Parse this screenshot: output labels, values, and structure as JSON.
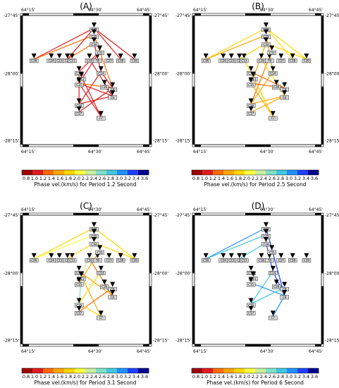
{
  "figure": {
    "colorbar": {
      "ticks": [
        "0.8",
        "1.0",
        "1.2",
        "1.4",
        "1.6",
        "1.8",
        "2.0",
        "2.2",
        "2.4",
        "2.6",
        "2.8",
        "3.0",
        "3.2",
        "3.4",
        "3.6"
      ],
      "colors": [
        "#9e0000",
        "#e31a1c",
        "#ff6a00",
        "#ffa500",
        "#ffd700",
        "#ffff40",
        "#c8f0a0",
        "#7fe0c8",
        "#40c8e0",
        "#1e90ff",
        "#1e40ff",
        "#000090"
      ]
    }
  },
  "chart_data": [
    {
      "type": "map",
      "title": "(A)",
      "colorbar_label": "Phase vel.(km/s) for Period 1.2 Second",
      "lon_ticks": [
        "64°15'",
        "64°30'",
        "64°45'"
      ],
      "lat_ticks": [
        "-27°45'",
        "-28°00'",
        "-28°15'"
      ],
      "stations": [
        {
          "id": "C36"
        },
        {
          "id": "C24"
        },
        {
          "id": "C23"
        },
        {
          "id": "C20"
        },
        {
          "id": "C13"
        },
        {
          "id": "C18"
        },
        {
          "id": "T8"
        },
        {
          "id": "C27"
        },
        {
          "id": "C38"
        },
        {
          "id": "C39"
        },
        {
          "id": "C30"
        },
        {
          "id": "C25"
        },
        {
          "id": "C34"
        },
        {
          "id": "C31"
        },
        {
          "id": "C12"
        },
        {
          "id": "C14"
        },
        {
          "id": "C11"
        },
        {
          "id": "C15"
        },
        {
          "id": "C26"
        },
        {
          "id": "C8"
        },
        {
          "id": "C6"
        },
        {
          "id": "C16"
        },
        {
          "id": "C17"
        },
        {
          "id": "C7"
        }
      ],
      "paths": [
        {
          "a": "C36",
          "b": "C30",
          "color": "#e31a1c"
        },
        {
          "a": "C36",
          "b": "C25",
          "color": "#ff6a00"
        },
        {
          "a": "C20",
          "b": "C34",
          "color": "#ff6a00"
        },
        {
          "a": "C20",
          "b": "C30",
          "color": "#e31a1c"
        },
        {
          "a": "C30",
          "b": "C38",
          "color": "#e31a1c"
        },
        {
          "a": "C30",
          "b": "C39",
          "color": "#e31a1c"
        },
        {
          "a": "C34",
          "b": "C14",
          "color": "#e31a1c"
        },
        {
          "a": "C25",
          "b": "C8",
          "color": "#ff6a00"
        },
        {
          "a": "C31",
          "b": "C12",
          "color": "#e31a1c"
        },
        {
          "a": "C31",
          "b": "C15",
          "color": "#e31a1c"
        },
        {
          "a": "C12",
          "b": "C16",
          "color": "#e31a1c"
        },
        {
          "a": "C14",
          "b": "C16",
          "color": "#e31a1c"
        },
        {
          "a": "C14",
          "b": "C8",
          "color": "#e31a1c"
        },
        {
          "a": "C15",
          "b": "C7",
          "color": "#e31a1c"
        },
        {
          "a": "C15",
          "b": "C6",
          "color": "#e31a1c"
        },
        {
          "a": "C26",
          "b": "C6",
          "color": "#e31a1c"
        },
        {
          "a": "C26",
          "b": "C8",
          "color": "#e31a1c"
        },
        {
          "a": "C16",
          "b": "C6",
          "color": "#e31a1c"
        },
        {
          "a": "C12",
          "b": "C7",
          "color": "#e31a1c"
        },
        {
          "a": "C15",
          "b": "C8",
          "color": "#ff6a00"
        },
        {
          "a": "C18",
          "b": "C6",
          "color": "#e31a1c"
        },
        {
          "a": "C17",
          "b": "C8",
          "color": "#e31a1c"
        }
      ]
    },
    {
      "type": "map",
      "title": "(B)",
      "colorbar_label": "Phase vel.(km/s) for Period 2.5 Second",
      "lon_ticks": [
        "64°15'",
        "64°30'",
        "64°45'"
      ],
      "lat_ticks": [
        "-27°45'",
        "-28°00'",
        "-28°15'"
      ],
      "stations": [
        {
          "id": "C36"
        },
        {
          "id": "C24"
        },
        {
          "id": "C23"
        },
        {
          "id": "C20"
        },
        {
          "id": "C13"
        },
        {
          "id": "C18"
        },
        {
          "id": "T8"
        },
        {
          "id": "C27"
        },
        {
          "id": "C38"
        },
        {
          "id": "C39"
        },
        {
          "id": "C30"
        },
        {
          "id": "C25"
        },
        {
          "id": "C34"
        },
        {
          "id": "C31"
        },
        {
          "id": "C12"
        },
        {
          "id": "C14"
        },
        {
          "id": "C11"
        },
        {
          "id": "C15"
        },
        {
          "id": "C26"
        },
        {
          "id": "C8"
        },
        {
          "id": "C6"
        },
        {
          "id": "C16"
        },
        {
          "id": "C17"
        },
        {
          "id": "C7"
        }
      ],
      "paths": [
        {
          "a": "C36",
          "b": "C30",
          "color": "#ffd700"
        },
        {
          "a": "C36",
          "b": "C25",
          "color": "#ffa500"
        },
        {
          "a": "C30",
          "b": "C39",
          "color": "#ffd700"
        },
        {
          "a": "C30",
          "b": "C38",
          "color": "#ffd700"
        },
        {
          "a": "C34",
          "b": "C39",
          "color": "#ffd700"
        },
        {
          "a": "C25",
          "b": "C14",
          "color": "#ffa500"
        },
        {
          "a": "C34",
          "b": "C11",
          "color": "#ffa500"
        },
        {
          "a": "C20",
          "b": "C34",
          "color": "#ffd700"
        },
        {
          "a": "C31",
          "b": "C16",
          "color": "#ff6a00"
        },
        {
          "a": "C12",
          "b": "C8",
          "color": "#ff6a00"
        },
        {
          "a": "C14",
          "b": "C16",
          "color": "#ffa500"
        },
        {
          "a": "C11",
          "b": "C7",
          "color": "#ffd700"
        },
        {
          "a": "C15",
          "b": "C7",
          "color": "#ffa500"
        },
        {
          "a": "C26",
          "b": "C8",
          "color": "#ff6a00"
        },
        {
          "a": "C6",
          "b": "C16",
          "color": "#ffa500"
        },
        {
          "a": "C13",
          "b": "C7",
          "color": "#ffd700"
        },
        {
          "a": "C17",
          "b": "C6",
          "color": "#ffa500"
        },
        {
          "a": "C15",
          "b": "C8",
          "color": "#ff6a00"
        },
        {
          "a": "C18",
          "b": "C6",
          "color": "#ffd700"
        }
      ]
    },
    {
      "type": "map",
      "title": "(C)",
      "colorbar_label": "Phase vel.(km/s) for Period 3.1 Second",
      "lon_ticks": [
        "64°15'",
        "64°30'",
        "64°45'"
      ],
      "lat_ticks": [
        "-27°45'",
        "-28°00'",
        "-28°15'"
      ],
      "stations": [
        {
          "id": "C36"
        },
        {
          "id": "C24"
        },
        {
          "id": "C23"
        },
        {
          "id": "C20"
        },
        {
          "id": "C13"
        },
        {
          "id": "C18"
        },
        {
          "id": "T8"
        },
        {
          "id": "C27"
        },
        {
          "id": "C38"
        },
        {
          "id": "C39"
        },
        {
          "id": "C30"
        },
        {
          "id": "C25"
        },
        {
          "id": "C34"
        },
        {
          "id": "C31"
        },
        {
          "id": "C12"
        },
        {
          "id": "C14"
        },
        {
          "id": "C11"
        },
        {
          "id": "C15"
        },
        {
          "id": "C26"
        },
        {
          "id": "C8"
        },
        {
          "id": "C6"
        },
        {
          "id": "C16"
        },
        {
          "id": "C17"
        },
        {
          "id": "C7"
        }
      ],
      "paths": [
        {
          "a": "C36",
          "b": "C30",
          "color": "#ffd700"
        },
        {
          "a": "C36",
          "b": "C25",
          "color": "#ffff40"
        },
        {
          "a": "C30",
          "b": "C39",
          "color": "#ffd700"
        },
        {
          "a": "C34",
          "b": "C39",
          "color": "#ffd700"
        },
        {
          "a": "C20",
          "b": "C34",
          "color": "#ffd700"
        },
        {
          "a": "C34",
          "b": "C11",
          "color": "#c8f0a0"
        },
        {
          "a": "C31",
          "b": "C15",
          "color": "#ffa500"
        },
        {
          "a": "C12",
          "b": "C7",
          "color": "#ffa500"
        },
        {
          "a": "C14",
          "b": "C16",
          "color": "#ffd700"
        },
        {
          "a": "C11",
          "b": "C16",
          "color": "#7fe0c8"
        },
        {
          "a": "C15",
          "b": "C8",
          "color": "#c8f0a0"
        },
        {
          "a": "C26",
          "b": "C6",
          "color": "#7fe0c8"
        },
        {
          "a": "C12",
          "b": "C6",
          "color": "#ffa500"
        },
        {
          "a": "C18",
          "b": "C6",
          "color": "#ff6a00"
        },
        {
          "a": "C17",
          "b": "C8",
          "color": "#ff6a00"
        },
        {
          "a": "C16",
          "b": "C7",
          "color": "#ffd700"
        }
      ]
    },
    {
      "type": "map",
      "title": "(D)",
      "colorbar_label": "Phase vel.(km/s) for Period 6 Second",
      "lon_ticks": [
        "64°15'",
        "64°30'",
        "64°45'"
      ],
      "lat_ticks": [
        "-27°45'",
        "-28°00'",
        "-28°15'"
      ],
      "stations": [
        {
          "id": "C36"
        },
        {
          "id": "C24"
        },
        {
          "id": "C23"
        },
        {
          "id": "C20"
        },
        {
          "id": "C13"
        },
        {
          "id": "C18"
        },
        {
          "id": "T8"
        },
        {
          "id": "C27"
        },
        {
          "id": "C38"
        },
        {
          "id": "C39"
        },
        {
          "id": "C30"
        },
        {
          "id": "C25"
        },
        {
          "id": "C34"
        },
        {
          "id": "C31"
        },
        {
          "id": "C12"
        },
        {
          "id": "C14"
        },
        {
          "id": "C11"
        },
        {
          "id": "C15"
        },
        {
          "id": "C26"
        },
        {
          "id": "C8"
        },
        {
          "id": "C6"
        },
        {
          "id": "C16"
        },
        {
          "id": "C17"
        },
        {
          "id": "C7"
        }
      ],
      "paths": [
        {
          "a": "C36",
          "b": "C30",
          "color": "#1e90ff"
        },
        {
          "a": "C36",
          "b": "C25",
          "color": "#40c8e0"
        },
        {
          "a": "C20",
          "b": "C34",
          "color": "#40c8e0"
        },
        {
          "a": "C30",
          "b": "C6",
          "color": "#1e40ff"
        },
        {
          "a": "C34",
          "b": "C14",
          "color": "#1e40ff"
        },
        {
          "a": "C14",
          "b": "C16",
          "color": "#40c8e0"
        },
        {
          "a": "C26",
          "b": "C8",
          "color": "#1e90ff"
        },
        {
          "a": "C15",
          "b": "C6",
          "color": "#1e90ff"
        },
        {
          "a": "C8",
          "b": "C16",
          "color": "#40c8e0"
        },
        {
          "a": "C7",
          "b": "C6",
          "color": "#1e90ff"
        },
        {
          "a": "C14",
          "b": "C6",
          "color": "#1e40ff"
        }
      ]
    }
  ]
}
